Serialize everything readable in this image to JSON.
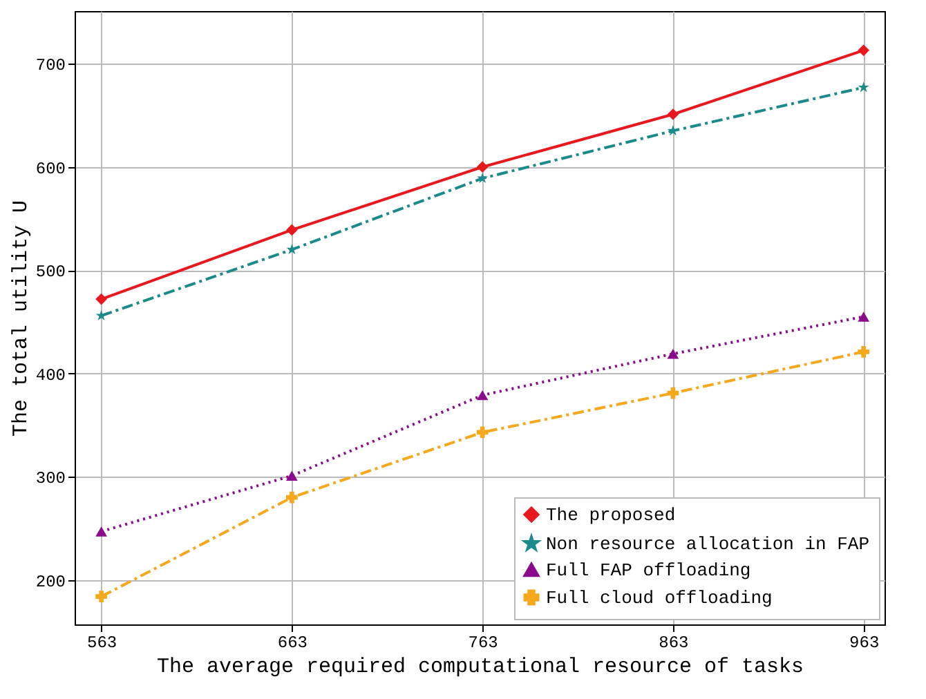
{
  "chart_data": {
    "type": "line",
    "xlabel": "The average required computational resource of tasks",
    "ylabel": "The total utility U",
    "x": [
      563,
      663,
      763,
      863,
      963
    ],
    "series": [
      {
        "name": "The proposed",
        "color": "#e8191e",
        "marker": "diamond",
        "line_style": "solid",
        "values": [
          472,
          539,
          600,
          651,
          713
        ]
      },
      {
        "name": "Non resource allocation in FAP",
        "color": "#1a8a8a",
        "marker": "star",
        "line_style": "dashdot",
        "values": [
          456,
          520,
          589,
          635,
          677
        ]
      },
      {
        "name": "Full FAP offloading",
        "color": "#8b0a8b",
        "marker": "triangle",
        "line_style": "dotted",
        "values": [
          247,
          301,
          379,
          419,
          455
        ]
      },
      {
        "name": "Full cloud offloading",
        "color": "#f5a81c",
        "marker": "cross",
        "line_style": "dashdot",
        "values": [
          184,
          280,
          343,
          381,
          421
        ]
      }
    ],
    "xlim": [
      549,
      974
    ],
    "xticks": [
      563,
      663,
      763,
      863,
      963
    ],
    "ylim": [
      157,
      751
    ],
    "yticks": [
      200,
      300,
      400,
      500,
      600,
      700
    ],
    "grid": true,
    "legend": "bottom right"
  }
}
